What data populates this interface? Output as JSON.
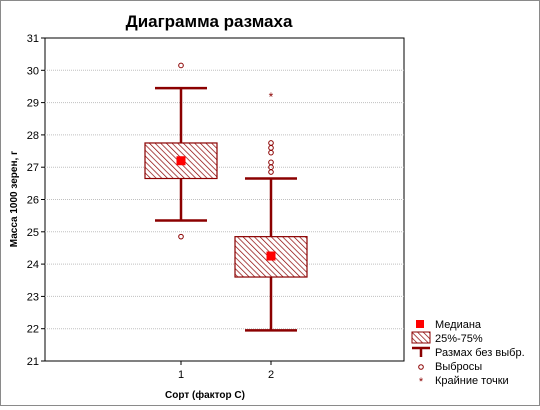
{
  "chart_data": {
    "type": "boxplot",
    "title": "Диаграмма размаха",
    "xlabel": "Сорт (фактор С)",
    "ylabel": "Масса 1000 зерен, г",
    "ylim": [
      21,
      31
    ],
    "yticks": [
      21,
      22,
      23,
      24,
      25,
      26,
      27,
      28,
      29,
      30,
      31
    ],
    "categories": [
      "1",
      "2"
    ],
    "grid": true,
    "legend_position": "bottom-right",
    "colors": {
      "box": "#8b0000",
      "median": "#ff0000",
      "grid": "#c0c0c0"
    },
    "boxes": [
      {
        "category": "1",
        "median": 27.2,
        "q1": 26.65,
        "q3": 27.75,
        "whisker_low": 25.35,
        "whisker_high": 29.45,
        "outliers": [
          30.15,
          24.85
        ],
        "extremes": []
      },
      {
        "category": "2",
        "median": 24.25,
        "q1": 23.6,
        "q3": 24.85,
        "whisker_low": 21.95,
        "whisker_high": 26.65,
        "outliers": [
          26.85,
          27.0,
          27.15,
          27.45,
          27.6,
          27.75
        ],
        "extremes": [
          29.2
        ]
      }
    ],
    "legend": {
      "median": "Медиана",
      "box": "25%-75%",
      "whisker": "Размах без выбр.",
      "outlier": "Выбросы",
      "extreme": "Крайние точки"
    }
  }
}
